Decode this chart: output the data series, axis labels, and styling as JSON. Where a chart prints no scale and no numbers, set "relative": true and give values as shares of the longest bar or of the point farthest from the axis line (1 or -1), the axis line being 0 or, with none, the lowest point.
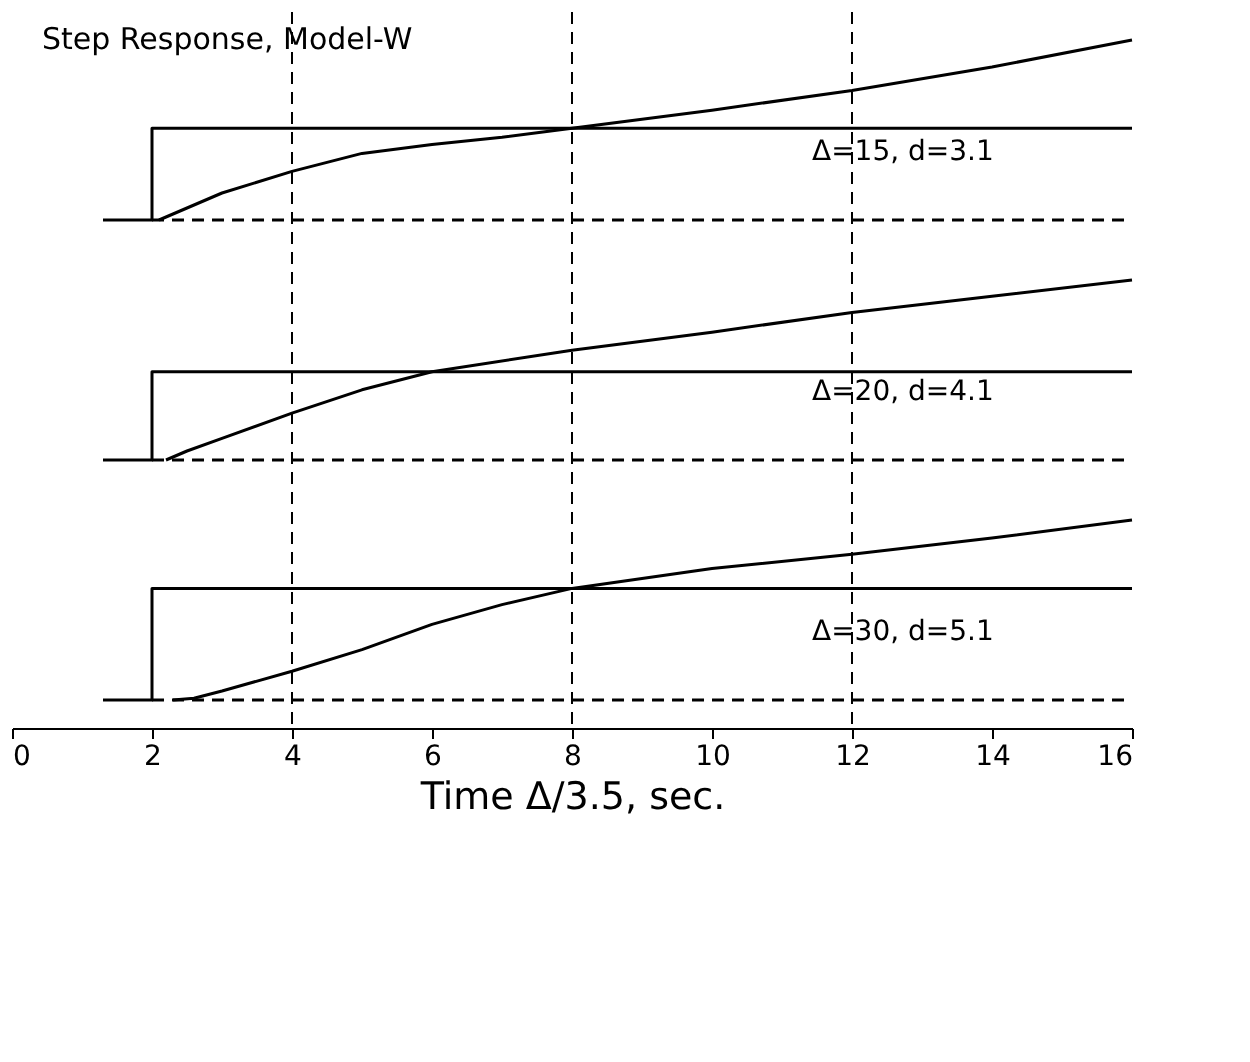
{
  "chart_data": [
    {
      "type": "line",
      "title": "Step Response, Model-W",
      "relative": true,
      "xlim": [
        0,
        16
      ],
      "xticks": [
        0,
        2,
        4,
        6,
        8,
        10,
        12,
        14,
        16
      ],
      "tick_labels": false,
      "line_style": "solid",
      "marker": "none",
      "series": [
        {
          "color": "#000000",
          "x": [
            1.3,
            2,
            2,
            16
          ],
          "values": [
            0,
            0,
            0.51,
            0.51
          ]
        },
        {
          "color": "#000000",
          "x": [
            2.1,
            2.4,
            3,
            4,
            5,
            6,
            7,
            8,
            10,
            12,
            14,
            16
          ],
          "values": [
            0,
            0.05,
            0.15,
            0.27,
            0.37,
            0.42,
            0.46,
            0.51,
            0.61,
            0.72,
            0.85,
            1
          ]
        },
        {
          "color": "#000000",
          "x": [
            2,
            16
          ],
          "values": [
            0,
            0
          ],
          "line_style": "dashed"
        }
      ],
      "ref_lines": [
        {
          "axis": "x",
          "value": 4,
          "line_style": "dashed"
        },
        {
          "axis": "x",
          "value": 8,
          "line_style": "dashed"
        },
        {
          "axis": "x",
          "value": 12,
          "line_style": "dashed"
        }
      ],
      "annotations": [
        "Δ=15, d=3.1"
      ]
    },
    {
      "type": "line",
      "relative": true,
      "xlim": [
        0,
        16
      ],
      "xticks": [
        0,
        2,
        4,
        6,
        8,
        10,
        12,
        14,
        16
      ],
      "tick_labels": false,
      "line_style": "solid",
      "marker": "none",
      "series": [
        {
          "color": "#000000",
          "x": [
            1.3,
            2,
            2,
            16
          ],
          "values": [
            0,
            0,
            0.49,
            0.49
          ]
        },
        {
          "color": "#000000",
          "x": [
            2.2,
            2.5,
            3,
            4,
            5,
            6,
            8,
            10,
            12,
            14,
            16
          ],
          "values": [
            0,
            0.05,
            0.12,
            0.26,
            0.39,
            0.49,
            0.61,
            0.71,
            0.82,
            0.91,
            1
          ]
        },
        {
          "color": "#000000",
          "x": [
            2,
            16
          ],
          "values": [
            0,
            0
          ],
          "line_style": "dashed"
        }
      ],
      "ref_lines": [
        {
          "axis": "x",
          "value": 4,
          "line_style": "dashed"
        },
        {
          "axis": "x",
          "value": 8,
          "line_style": "dashed"
        },
        {
          "axis": "x",
          "value": 12,
          "line_style": "dashed"
        }
      ],
      "annotations": [
        "Δ=20, d=4.1"
      ]
    },
    {
      "type": "line",
      "relative": true,
      "xlim": [
        0,
        16
      ],
      "xticks": [
        0,
        2,
        4,
        6,
        8,
        10,
        12,
        14,
        16
      ],
      "tick_labels": "x",
      "xlabel": "Time  Δ/3.5, sec.",
      "line_style": "solid",
      "marker": "none",
      "series": [
        {
          "color": "#000000",
          "x": [
            1.3,
            2,
            2,
            16
          ],
          "values": [
            0,
            0,
            0.62,
            0.62
          ]
        },
        {
          "color": "#000000",
          "x": [
            2.3,
            2.6,
            3,
            4,
            5,
            6,
            7,
            8,
            10,
            12,
            14,
            16
          ],
          "values": [
            0,
            0.01,
            0.05,
            0.16,
            0.28,
            0.42,
            0.53,
            0.62,
            0.73,
            0.81,
            0.9,
            1
          ]
        },
        {
          "color": "#000000",
          "x": [
            2,
            16
          ],
          "values": [
            0,
            0
          ],
          "line_style": "dashed"
        }
      ],
      "ref_lines": [
        {
          "axis": "x",
          "value": 4,
          "line_style": "dashed"
        },
        {
          "axis": "x",
          "value": 8,
          "line_style": "dashed"
        },
        {
          "axis": "x",
          "value": 12,
          "line_style": "dashed"
        }
      ],
      "annotations": [
        "Δ=30, d=5.1"
      ]
    }
  ]
}
